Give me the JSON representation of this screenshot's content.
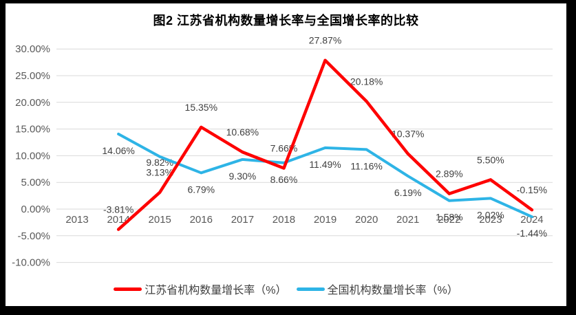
{
  "page": {
    "frame_color": "#000000",
    "panel_color": "#FFFFFF",
    "grid_color": "#D9D9D9",
    "axis_text_color": "#595959",
    "data_label_color": "#404040",
    "title_color": "#000000"
  },
  "chart_data": {
    "type": "line",
    "title": "图2  江苏省机构数量增长率与全国增长率的比较",
    "categories": [
      "2013",
      "2014",
      "2015",
      "2016",
      "2017",
      "2018",
      "2019",
      "2020",
      "2021",
      "2022",
      "2023",
      "2024"
    ],
    "series": [
      {
        "name": "江苏省机构数量增长率（%）",
        "color": "#FE0000",
        "label_position": "above",
        "values": [
          null,
          -3.81,
          3.13,
          15.35,
          10.68,
          7.66,
          27.87,
          20.18,
          10.37,
          2.89,
          5.5,
          -0.15
        ],
        "labels": [
          null,
          "-3.81%",
          "3.13%",
          "15.35%",
          "10.68%",
          "7.66%",
          "27.87%",
          "20.18%",
          "10.37%",
          "2.89%",
          "5.50%",
          "-0.15%"
        ]
      },
      {
        "name": "全国机构数量增长率（%）",
        "color": "#2EB4E6",
        "label_position": "below",
        "values": [
          null,
          14.06,
          9.82,
          6.79,
          9.3,
          8.66,
          11.49,
          11.16,
          6.19,
          1.58,
          2.02,
          -1.44
        ],
        "labels": [
          null,
          "14.06%",
          "9.82%",
          "6.79%",
          "9.30%",
          "8.66%",
          "11.49%",
          "11.16%",
          "6.19%",
          "1.58%",
          "2.02%",
          "-1.44%"
        ]
      }
    ],
    "y_axis": {
      "ticks": [
        {
          "value": 30,
          "label": "30.00%"
        },
        {
          "value": 25,
          "label": "25.00%"
        },
        {
          "value": 20,
          "label": "20.00%"
        },
        {
          "value": 15,
          "label": "15.00%"
        },
        {
          "value": 10,
          "label": "10.00%"
        },
        {
          "value": 5,
          "label": "5.00%"
        },
        {
          "value": 0,
          "label": "0.00%"
        },
        {
          "value": -5,
          "label": "-5.00%"
        },
        {
          "value": -10,
          "label": "-10.00%"
        }
      ]
    },
    "ylim": [
      -10,
      30
    ],
    "grid": true,
    "legend_position": "bottom"
  }
}
